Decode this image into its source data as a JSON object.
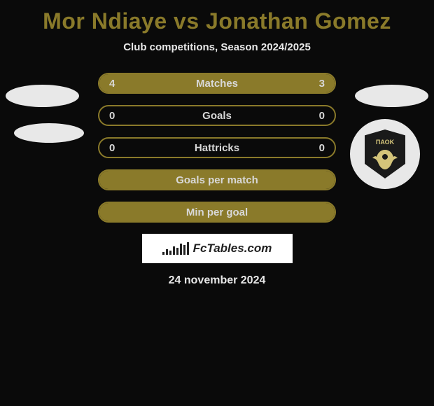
{
  "title": "Mor Ndiaye vs Jonathan Gomez",
  "subtitle": "Club competitions, Season 2024/2025",
  "date": "24 november 2024",
  "watermark_text": "FcTables.com",
  "club_badge_text": "ΠΑΟΚ",
  "accent_color": "#8a7a2a",
  "background_color": "#0a0a0a",
  "text_color": "#d8d8d8",
  "rows": [
    {
      "label": "Matches",
      "left": "4",
      "right": "3",
      "left_fill_pct": 57,
      "right_fill_pct": 43
    },
    {
      "label": "Goals",
      "left": "0",
      "right": "0",
      "left_fill_pct": 0,
      "right_fill_pct": 0
    },
    {
      "label": "Hattricks",
      "left": "0",
      "right": "0",
      "left_fill_pct": 0,
      "right_fill_pct": 0
    },
    {
      "label": "Goals per match",
      "left": "",
      "right": "",
      "left_fill_pct": 100,
      "right_fill_pct": 0,
      "full": true
    },
    {
      "label": "Min per goal",
      "left": "",
      "right": "",
      "left_fill_pct": 100,
      "right_fill_pct": 0,
      "full": true
    }
  ],
  "watermark_bars": [
    4,
    8,
    6,
    12,
    10,
    16,
    14,
    18
  ]
}
